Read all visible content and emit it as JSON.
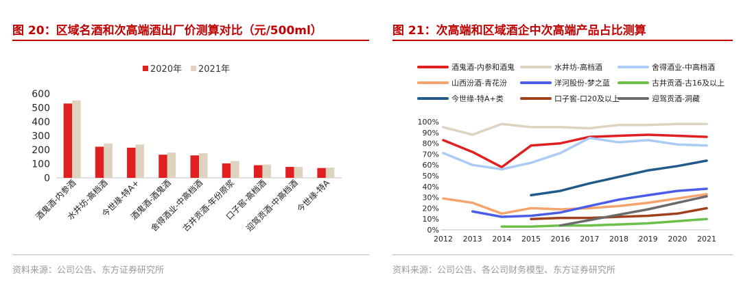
{
  "left": {
    "title": "图 20：区域名酒和次高端酒出厂价测算对比（元/500ml）",
    "source": "资料来源：公司公告、东方证券研究所",
    "chart_data": {
      "type": "bar",
      "title": "区域名酒和次高端酒出厂价测算对比（元/500ml）",
      "categories": [
        "酒鬼酒-内参酒",
        "水井坊-高档酒",
        "今世缘-特A+",
        "酒鬼酒-酒鬼酒",
        "舍得酒业-中高档酒",
        "古井贡酒-年份原浆",
        "口子窖-高档酒",
        "迎驾贡酒-中高档酒",
        "今世缘-特A"
      ],
      "series": [
        {
          "name": "2020年",
          "color": "#e02020",
          "values": [
            530,
            222,
            215,
            165,
            160,
            103,
            90,
            78,
            70
          ]
        },
        {
          "name": "2021年",
          "color": "#ddd3bf",
          "values": [
            552,
            245,
            238,
            180,
            175,
            120,
            95,
            78,
            73
          ]
        }
      ],
      "ylim": [
        0,
        600
      ],
      "yticks": [
        "0",
        "100",
        "200",
        "300",
        "400",
        "500",
        "600"
      ],
      "legend_position": "top"
    }
  },
  "right": {
    "title": "图 21：次高端和区域酒企中次高端产品占比测算",
    "source": "资料来源：公司公告、各公司财务模型、东方证券研究所",
    "chart_data": {
      "type": "line",
      "title": "次高端和区域酒企中次高端产品占比测算",
      "x": [
        "2012",
        "2013",
        "2014",
        "2015",
        "2016",
        "2017",
        "2018",
        "2019",
        "2020",
        "2021"
      ],
      "ylim": [
        0,
        100
      ],
      "yticks": [
        "0%",
        "10%",
        "20%",
        "30%",
        "40%",
        "50%",
        "60%",
        "70%",
        "80%",
        "90%",
        "100%"
      ],
      "legend_position": "top",
      "series": [
        {
          "name": "酒鬼酒-内参和酒鬼",
          "color": "#e02020",
          "values": [
            83,
            72,
            58,
            78,
            80,
            86,
            87,
            88,
            87,
            86
          ]
        },
        {
          "name": "水井坊-高档酒",
          "color": "#ddd3bf",
          "values": [
            95,
            88,
            98,
            95,
            95,
            94,
            97,
            97,
            98,
            98
          ]
        },
        {
          "name": "舍得酒业-中高档酒",
          "color": "#a9cbf5",
          "values": [
            71,
            60,
            56,
            62,
            71,
            85,
            81,
            83,
            79,
            78
          ]
        },
        {
          "name": "山西汾酒-青花汾",
          "color": "#f4a46c",
          "values": [
            29,
            25,
            15,
            20,
            19,
            20,
            22,
            25,
            29,
            33
          ]
        },
        {
          "name": "洋河股份-梦之蓝",
          "color": "#4a5ce8",
          "values": [
            null,
            17,
            12,
            13,
            16,
            22,
            28,
            32,
            36,
            38
          ]
        },
        {
          "name": "古井贡酒-古16及以上",
          "color": "#6cc04a",
          "values": [
            null,
            null,
            3,
            3,
            4,
            4,
            5,
            6,
            8,
            10
          ]
        },
        {
          "name": "今世缘-特A+类",
          "color": "#1f5a8a",
          "values": [
            null,
            null,
            null,
            32,
            36,
            43,
            49,
            55,
            59,
            64
          ]
        },
        {
          "name": "口子窖-口20及以上",
          "color": "#a0401c",
          "values": [
            null,
            null,
            null,
            10,
            11,
            11,
            12,
            13,
            15,
            20
          ]
        },
        {
          "name": "迎驾贡酒-洞藏",
          "color": "#6a6a6a",
          "values": [
            null,
            null,
            null,
            null,
            4,
            9,
            14,
            19,
            25,
            31
          ]
        }
      ]
    }
  }
}
